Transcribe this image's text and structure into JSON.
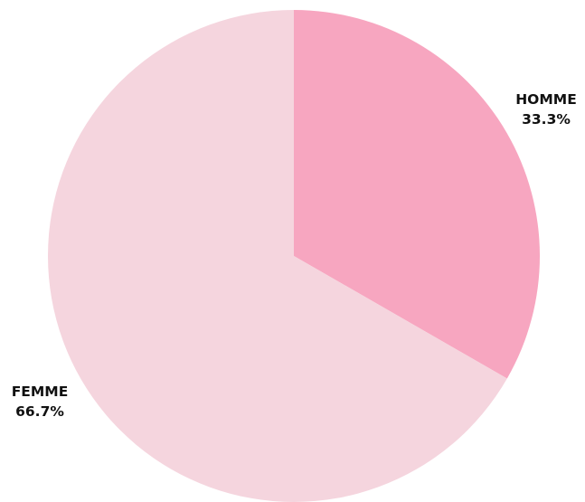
{
  "chart_data": {
    "type": "pie",
    "start": "12 o'clock",
    "direction": "clockwise",
    "slices": [
      {
        "label": "HOMME",
        "value": 33.3,
        "display": "33.3%",
        "color": "#f7a6c0"
      },
      {
        "label": "FEMME",
        "value": 66.7,
        "display": "66.7%",
        "color": "#f5d5de"
      }
    ]
  }
}
